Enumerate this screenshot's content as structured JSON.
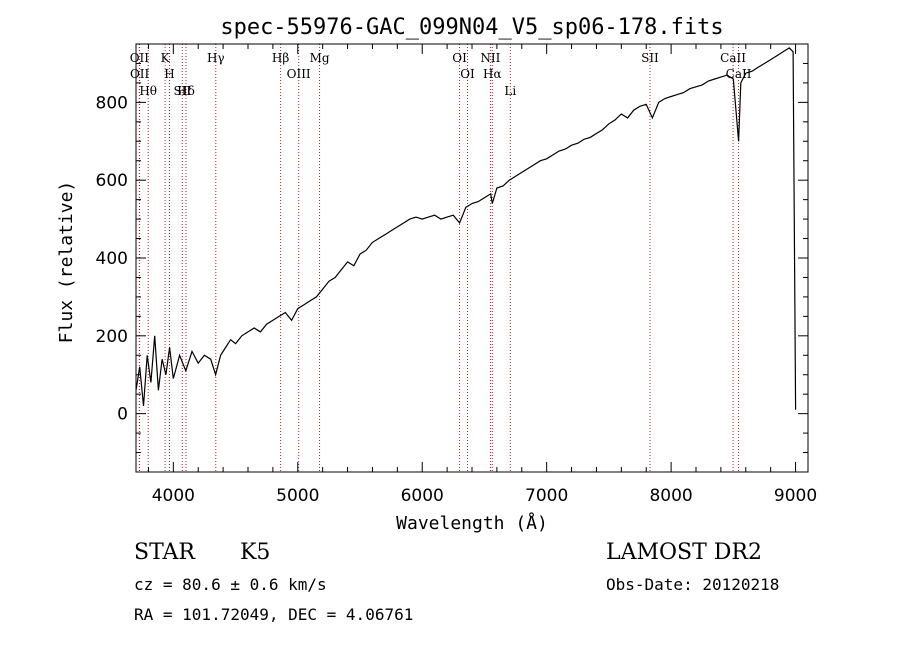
{
  "chart_data": {
    "type": "line",
    "title": "spec-55976-GAC_099N04_V5_sp06-178.fits",
    "xlabel": "Wavelength (Å)",
    "ylabel": "Flux (relative)",
    "xlim": [
      3700,
      9100
    ],
    "ylim": [
      -150,
      950
    ],
    "x_ticks": [
      4000,
      5000,
      6000,
      7000,
      8000,
      9000
    ],
    "y_ticks": [
      0,
      200,
      400,
      600,
      800
    ],
    "grid": false,
    "line_color": "#000000",
    "marker_line_color": "#b22222",
    "spectral_lines": [
      {
        "wavelength": 3727,
        "label": "OII"
      },
      {
        "wavelength": 3729,
        "label": "OII"
      },
      {
        "wavelength": 3798,
        "label": "Hθ"
      },
      {
        "wavelength": 3934,
        "label": "K"
      },
      {
        "wavelength": 3969,
        "label": "H"
      },
      {
        "wavelength": 4072,
        "label": "SII"
      },
      {
        "wavelength": 4102,
        "label": "Hδ"
      },
      {
        "wavelength": 4341,
        "label": "Hγ"
      },
      {
        "wavelength": 4862,
        "label": "Hβ"
      },
      {
        "wavelength": 5007,
        "label": "OIII"
      },
      {
        "wavelength": 5175,
        "label": "Mg"
      },
      {
        "wavelength": 6300,
        "label": "OI"
      },
      {
        "wavelength": 6364,
        "label": "OI"
      },
      {
        "wavelength": 6548,
        "label": "NII"
      },
      {
        "wavelength": 6563,
        "label": "Hα"
      },
      {
        "wavelength": 6708,
        "label": "Li"
      },
      {
        "wavelength": 7830,
        "label": "SII"
      },
      {
        "wavelength": 8498,
        "label": "CaII"
      },
      {
        "wavelength": 8542,
        "label": "CaII"
      }
    ],
    "series": [
      {
        "x": [
          3700,
          3730,
          3760,
          3790,
          3820,
          3850,
          3880,
          3910,
          3940,
          3970,
          4000,
          4050,
          4100,
          4150,
          4200,
          4250,
          4300,
          4340,
          4380,
          4420,
          4460,
          4500,
          4550,
          4600,
          4650,
          4700,
          4750,
          4800,
          4850,
          4900,
          4950,
          5000,
          5050,
          5100,
          5150,
          5200,
          5250,
          5300,
          5350,
          5400,
          5450,
          5500,
          5550,
          5600,
          5650,
          5700,
          5750,
          5800,
          5850,
          5900,
          5950,
          6000,
          6050,
          6100,
          6150,
          6200,
          6250,
          6300,
          6350,
          6400,
          6450,
          6500,
          6550,
          6563,
          6600,
          6650,
          6700,
          6750,
          6800,
          6850,
          6900,
          6950,
          7000,
          7050,
          7100,
          7150,
          7200,
          7250,
          7300,
          7350,
          7400,
          7450,
          7500,
          7550,
          7600,
          7650,
          7700,
          7750,
          7800,
          7850,
          7900,
          7950,
          8000,
          8050,
          8100,
          8150,
          8200,
          8250,
          8300,
          8350,
          8400,
          8450,
          8500,
          8542,
          8560,
          8600,
          8650,
          8700,
          8750,
          8800,
          8850,
          8900,
          8950,
          8980,
          9000
        ],
        "y": [
          60,
          120,
          20,
          150,
          80,
          200,
          60,
          140,
          100,
          170,
          90,
          150,
          110,
          160,
          130,
          150,
          140,
          100,
          150,
          170,
          190,
          180,
          200,
          210,
          220,
          210,
          230,
          240,
          250,
          260,
          240,
          270,
          280,
          290,
          300,
          320,
          340,
          350,
          370,
          390,
          380,
          410,
          420,
          440,
          450,
          460,
          470,
          480,
          490,
          500,
          505,
          500,
          505,
          510,
          500,
          505,
          510,
          490,
          530,
          540,
          545,
          555,
          565,
          540,
          580,
          585,
          600,
          610,
          620,
          630,
          640,
          650,
          655,
          665,
          675,
          680,
          690,
          695,
          705,
          710,
          720,
          730,
          745,
          755,
          770,
          760,
          780,
          790,
          795,
          760,
          800,
          810,
          815,
          820,
          825,
          835,
          840,
          845,
          855,
          860,
          865,
          870,
          860,
          700,
          850,
          875,
          880,
          890,
          900,
          910,
          920,
          930,
          940,
          930,
          10
        ]
      }
    ]
  },
  "footer": {
    "object_type": "STAR",
    "subclass": "K5",
    "cz": "cz = 80.6 ± 0.6 km/s",
    "coords": "RA = 101.72049, DEC =   4.06761",
    "survey": "LAMOST DR2",
    "obs_date": "Obs-Date: 20120218"
  }
}
